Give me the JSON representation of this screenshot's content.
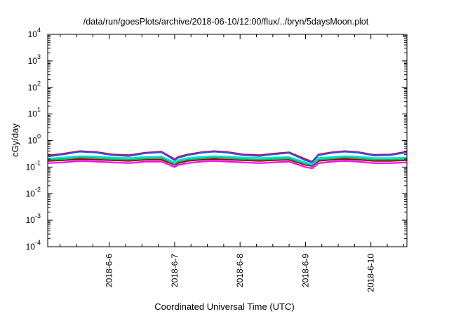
{
  "chart_data": {
    "type": "line",
    "title": "/data/run/goesPlots/archive/2018-06-10/12:00/flux/../bryn/5daysMoon.plot",
    "xlabel": "Coordinated Universal Time (UTC)",
    "ylabel": "cGy/day",
    "yscale": "log",
    "ylim": [
      0.0001,
      10000
    ],
    "xlim_days": [
      5.06,
      10.55
    ],
    "grid": false,
    "legend": "none",
    "y_ticks": [
      {
        "value": 0.0001,
        "base": "10",
        "exp": "-4"
      },
      {
        "value": 0.001,
        "base": "10",
        "exp": "-3"
      },
      {
        "value": 0.01,
        "base": "10",
        "exp": "-2"
      },
      {
        "value": 0.1,
        "base": "10",
        "exp": "-1"
      },
      {
        "value": 1,
        "base": "10",
        "exp": "0"
      },
      {
        "value": 10,
        "base": "10",
        "exp": "1"
      },
      {
        "value": 100,
        "base": "10",
        "exp": "2"
      },
      {
        "value": 1000,
        "base": "10",
        "exp": "3"
      },
      {
        "value": 10000,
        "base": "10",
        "exp": "4"
      }
    ],
    "x_ticks": [
      {
        "label": "2018-6-6",
        "day": 6
      },
      {
        "label": "2018-6-7",
        "day": 7
      },
      {
        "label": "2018-6-8",
        "day": 8
      },
      {
        "label": "2018-6-9",
        "day": 9
      },
      {
        "label": "2018-6-10",
        "day": 10
      }
    ],
    "series": [
      {
        "color": "#ff00ff",
        "x": [
          5.06,
          5.3,
          5.55,
          5.8,
          6.05,
          6.3,
          6.55,
          6.8,
          7.0,
          7.05,
          7.2,
          7.4,
          7.6,
          7.8,
          8.05,
          8.3,
          8.5,
          8.75,
          9.0,
          9.1,
          9.2,
          9.4,
          9.6,
          9.8,
          10.05,
          10.3,
          10.55
        ],
        "values": [
          0.14,
          0.15,
          0.17,
          0.16,
          0.15,
          0.14,
          0.16,
          0.16,
          0.1,
          0.12,
          0.14,
          0.16,
          0.17,
          0.16,
          0.15,
          0.14,
          0.15,
          0.16,
          0.1,
          0.09,
          0.14,
          0.16,
          0.17,
          0.16,
          0.14,
          0.14,
          0.15
        ]
      },
      {
        "color": "#a00000",
        "x": [
          5.06,
          5.3,
          5.55,
          5.8,
          6.05,
          6.3,
          6.55,
          6.8,
          7.0,
          7.05,
          7.2,
          7.4,
          7.6,
          7.8,
          8.05,
          8.3,
          8.5,
          8.75,
          9.0,
          9.1,
          9.2,
          9.4,
          9.6,
          9.8,
          10.05,
          10.3,
          10.55
        ],
        "values": [
          0.17,
          0.18,
          0.2,
          0.19,
          0.18,
          0.17,
          0.19,
          0.19,
          0.12,
          0.14,
          0.17,
          0.19,
          0.2,
          0.19,
          0.18,
          0.17,
          0.18,
          0.19,
          0.12,
          0.11,
          0.17,
          0.19,
          0.2,
          0.19,
          0.17,
          0.17,
          0.18
        ]
      },
      {
        "color": "#00c060",
        "x": [
          5.06,
          5.3,
          5.55,
          5.8,
          6.05,
          6.3,
          6.55,
          6.8,
          7.0,
          7.05,
          7.2,
          7.4,
          7.6,
          7.8,
          8.05,
          8.3,
          8.5,
          8.75,
          9.0,
          9.1,
          9.2,
          9.4,
          9.6,
          9.8,
          10.05,
          10.3,
          10.55
        ],
        "values": [
          0.19,
          0.2,
          0.23,
          0.22,
          0.2,
          0.19,
          0.21,
          0.22,
          0.13,
          0.16,
          0.19,
          0.21,
          0.23,
          0.22,
          0.2,
          0.19,
          0.2,
          0.21,
          0.13,
          0.12,
          0.19,
          0.21,
          0.23,
          0.22,
          0.19,
          0.19,
          0.2
        ]
      },
      {
        "color": "#00e0e0",
        "x": [
          5.06,
          5.3,
          5.55,
          5.8,
          6.05,
          6.3,
          6.55,
          6.8,
          7.0,
          7.05,
          7.2,
          7.4,
          7.6,
          7.8,
          8.05,
          8.3,
          8.5,
          8.75,
          9.0,
          9.1,
          9.2,
          9.4,
          9.6,
          9.8,
          10.05,
          10.3,
          10.55
        ],
        "values": [
          0.21,
          0.23,
          0.26,
          0.25,
          0.23,
          0.22,
          0.24,
          0.25,
          0.15,
          0.18,
          0.22,
          0.24,
          0.26,
          0.25,
          0.23,
          0.22,
          0.23,
          0.24,
          0.15,
          0.13,
          0.22,
          0.24,
          0.26,
          0.25,
          0.22,
          0.22,
          0.23
        ]
      },
      {
        "color": "#e00000",
        "x": [
          5.06,
          5.3,
          5.55,
          5.8,
          6.05,
          6.3,
          6.55,
          6.8,
          7.0,
          7.05,
          7.2,
          7.4,
          7.6,
          7.8,
          8.05,
          8.3,
          8.5,
          8.75,
          9.0,
          9.1,
          9.2,
          9.4,
          9.6,
          9.8,
          10.05,
          10.3,
          10.55
        ],
        "values": [
          0.27,
          0.32,
          0.4,
          0.37,
          0.3,
          0.28,
          0.35,
          0.38,
          0.2,
          0.24,
          0.3,
          0.36,
          0.4,
          0.37,
          0.3,
          0.28,
          0.32,
          0.36,
          0.2,
          0.16,
          0.3,
          0.36,
          0.4,
          0.37,
          0.29,
          0.3,
          0.38
        ]
      },
      {
        "color": "#3050ff",
        "x": [
          5.06,
          5.3,
          5.55,
          5.8,
          6.05,
          6.3,
          6.55,
          6.8,
          7.0,
          7.05,
          7.2,
          7.4,
          7.6,
          7.8,
          8.05,
          8.3,
          8.5,
          8.75,
          9.0,
          9.1,
          9.2,
          9.4,
          9.6,
          9.8,
          10.05,
          10.3,
          10.55
        ],
        "values": [
          0.25,
          0.3,
          0.38,
          0.35,
          0.28,
          0.26,
          0.33,
          0.36,
          0.18,
          0.22,
          0.28,
          0.34,
          0.38,
          0.35,
          0.28,
          0.26,
          0.3,
          0.34,
          0.18,
          0.15,
          0.28,
          0.34,
          0.38,
          0.35,
          0.27,
          0.28,
          0.36
        ]
      }
    ]
  }
}
